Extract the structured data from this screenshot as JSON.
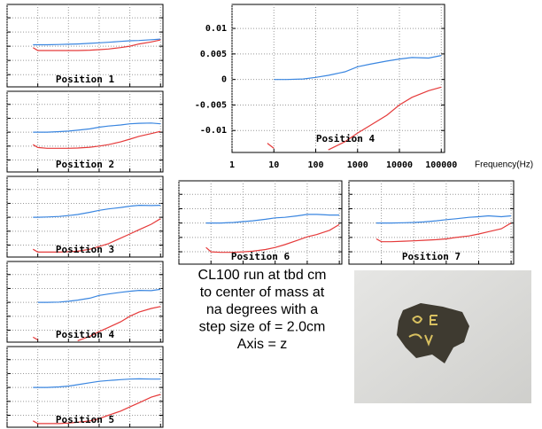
{
  "chart_data": [
    {
      "type": "line",
      "title": "Position 1",
      "log_x": true,
      "grid": true,
      "tick_labels": false,
      "x": [
        7,
        10,
        20,
        50,
        100,
        200,
        500,
        1000,
        2000,
        5000,
        10000,
        20000,
        50000,
        100000
      ],
      "xlim": [
        1,
        120000
      ],
      "xticks": [
        1,
        10,
        100,
        1000,
        10000,
        100000
      ],
      "ylim": [
        -0.0143,
        0.0147
      ],
      "yticks": [
        -0.01,
        -0.005,
        0,
        0.005,
        0.01
      ],
      "series": [
        {
          "color": "#3a86e0",
          "values": [
            0.0005,
            0.0005,
            0.0005,
            0.0006,
            0.0007,
            0.0008,
            0.001,
            0.0012,
            0.0014,
            0.0017,
            0.0019,
            0.002,
            0.0023,
            0.0025
          ]
        },
        {
          "color": "#e53a3a",
          "values": [
            -0.0005,
            -0.0015,
            -0.0015,
            -0.0015,
            -0.0015,
            -0.0015,
            -0.0014,
            -0.0012,
            -0.001,
            -0.0005,
            0,
            0.0008,
            0.0015,
            0.0022
          ]
        }
      ]
    },
    {
      "type": "line",
      "title": "Position 2",
      "log_x": true,
      "grid": true,
      "tick_labels": false,
      "x": [
        7,
        10,
        20,
        50,
        100,
        200,
        500,
        1000,
        2000,
        5000,
        10000,
        20000,
        50000,
        100000
      ],
      "xlim": [
        1,
        120000
      ],
      "xticks": [
        1,
        10,
        100,
        1000,
        10000,
        100000
      ],
      "ylim": [
        -0.0143,
        0.0147
      ],
      "yticks": [
        -0.01,
        -0.005,
        0,
        0.005,
        0.01
      ],
      "series": [
        {
          "color": "#3a86e0",
          "values": [
            0,
            0,
            0,
            0.0002,
            0.0004,
            0.0007,
            0.0012,
            0.0018,
            0.0022,
            0.0026,
            0.003,
            0.0032,
            0.0033,
            0.003
          ]
        },
        {
          "color": "#e53a3a",
          "values": [
            -0.0045,
            -0.0055,
            -0.0058,
            -0.0058,
            -0.0058,
            -0.0057,
            -0.0054,
            -0.005,
            -0.0045,
            -0.0035,
            -0.0025,
            -0.0015,
            -0.0005,
            0.0003
          ]
        }
      ]
    },
    {
      "type": "line",
      "title": "Position 3",
      "log_x": true,
      "grid": true,
      "tick_labels": false,
      "x": [
        7,
        10,
        20,
        50,
        100,
        200,
        500,
        1000,
        2000,
        5000,
        10000,
        20000,
        50000,
        100000
      ],
      "xlim": [
        1,
        120000
      ],
      "xticks": [
        1,
        10,
        100,
        1000,
        10000,
        100000
      ],
      "ylim": [
        -0.0143,
        0.0147
      ],
      "yticks": [
        -0.01,
        -0.005,
        0,
        0.005,
        0.01
      ],
      "series": [
        {
          "color": "#3a86e0",
          "values": [
            0,
            0,
            0.0001,
            0.0003,
            0.0006,
            0.001,
            0.0018,
            0.0025,
            0.003,
            0.0035,
            0.004,
            0.0043,
            0.0042,
            0.0043
          ]
        },
        {
          "color": "#e53a3a",
          "values": [
            -0.0115,
            -0.0125,
            -0.0125,
            -0.0125,
            -0.0124,
            -0.0122,
            -0.0115,
            -0.0105,
            -0.0095,
            -0.0075,
            -0.006,
            -0.0045,
            -0.0025,
            -0.0005
          ]
        }
      ]
    },
    {
      "type": "line",
      "title": "Position 4",
      "log_x": true,
      "grid": true,
      "tick_labels": false,
      "x": [
        7,
        10,
        20,
        50,
        100,
        200,
        500,
        1000,
        2000,
        5000,
        10000,
        20000,
        50000,
        100000
      ],
      "xlim": [
        1,
        120000
      ],
      "xticks": [
        1,
        10,
        100,
        1000,
        10000,
        100000
      ],
      "ylim": [
        -0.0143,
        0.0147
      ],
      "yticks": [
        -0.01,
        -0.005,
        0,
        0.005,
        0.01
      ],
      "series": [
        {
          "color": "#3a86e0",
          "values": [
            null,
            0,
            0,
            0.0001,
            0.0004,
            0.0008,
            0.0015,
            0.0025,
            0.003,
            0.0036,
            0.004,
            0.0043,
            0.0042,
            0.0047
          ]
        },
        {
          "color": "#e53a3a",
          "values": [
            -0.0125,
            -0.0135,
            null,
            null,
            null,
            -0.0138,
            -0.0122,
            -0.0105,
            -0.009,
            -0.007,
            -0.005,
            -0.0035,
            -0.0022,
            -0.0015
          ]
        }
      ]
    },
    {
      "type": "line",
      "title": "Position 5",
      "log_x": true,
      "grid": true,
      "tick_labels": false,
      "x": [
        7,
        10,
        20,
        50,
        100,
        200,
        500,
        1000,
        2000,
        5000,
        10000,
        20000,
        50000,
        100000
      ],
      "xlim": [
        1,
        120000
      ],
      "xticks": [
        1,
        10,
        100,
        1000,
        10000,
        100000
      ],
      "ylim": [
        -0.0143,
        0.0147
      ],
      "yticks": [
        -0.01,
        -0.005,
        0,
        0.005,
        0.01
      ],
      "series": [
        {
          "color": "#3a86e0",
          "values": [
            0,
            0,
            0,
            0.0002,
            0.0005,
            0.001,
            0.0017,
            0.0022,
            0.0025,
            0.0028,
            0.003,
            0.0031,
            0.003,
            0.003
          ]
        },
        {
          "color": "#e53a3a",
          "values": [
            -0.012,
            -0.013,
            -0.013,
            -0.013,
            -0.0128,
            -0.0125,
            -0.012,
            -0.0112,
            -0.01,
            -0.0085,
            -0.007,
            -0.0055,
            -0.0035,
            -0.0025
          ]
        }
      ]
    },
    {
      "type": "line",
      "title": "Position 4",
      "log_x": true,
      "grid": true,
      "tick_labels": true,
      "x_label": "Frequency(Hz)",
      "x": [
        7,
        10,
        20,
        50,
        100,
        200,
        500,
        1000,
        2000,
        5000,
        10000,
        20000,
        50000,
        100000
      ],
      "xlim": [
        1,
        120000
      ],
      "xticks": [
        1,
        10,
        100,
        1000,
        10000,
        100000
      ],
      "ylim": [
        -0.0143,
        0.0147
      ],
      "yticks": [
        -0.01,
        -0.005,
        0,
        0.005,
        0.01
      ],
      "series": [
        {
          "color": "#3a86e0",
          "values": [
            null,
            0,
            0,
            0.0001,
            0.0004,
            0.0008,
            0.0015,
            0.0025,
            0.003,
            0.0036,
            0.004,
            0.0043,
            0.0042,
            0.0047
          ]
        },
        {
          "color": "#e53a3a",
          "values": [
            -0.0125,
            -0.0135,
            null,
            null,
            null,
            -0.0138,
            -0.0122,
            -0.0105,
            -0.009,
            -0.007,
            -0.005,
            -0.0035,
            -0.0022,
            -0.0015
          ]
        }
      ]
    },
    {
      "type": "line",
      "title": "Position 6",
      "log_x": true,
      "grid": true,
      "tick_labels": false,
      "x": [
        7,
        10,
        20,
        50,
        100,
        200,
        500,
        1000,
        2000,
        5000,
        10000,
        20000,
        50000,
        100000
      ],
      "xlim": [
        1,
        120000
      ],
      "xticks": [
        1,
        10,
        100,
        1000,
        10000,
        100000
      ],
      "ylim": [
        -0.0143,
        0.0147
      ],
      "yticks": [
        -0.01,
        -0.005,
        0,
        0.005,
        0.01
      ],
      "series": [
        {
          "color": "#3a86e0",
          "values": [
            0,
            0,
            0,
            0.0002,
            0.0005,
            0.0008,
            0.0013,
            0.0018,
            0.002,
            0.0025,
            0.003,
            0.003,
            0.0028,
            0.0028
          ]
        },
        {
          "color": "#e53a3a",
          "values": [
            -0.0085,
            -0.01,
            -0.0102,
            -0.0102,
            -0.01,
            -0.0098,
            -0.0092,
            -0.0085,
            -0.0075,
            -0.006,
            -0.0048,
            -0.004,
            -0.0025,
            -0.0005
          ]
        }
      ]
    },
    {
      "type": "line",
      "title": "Position 7",
      "log_x": true,
      "grid": true,
      "tick_labels": false,
      "x": [
        7,
        10,
        20,
        50,
        100,
        200,
        500,
        1000,
        2000,
        5000,
        10000,
        20000,
        50000,
        100000
      ],
      "xlim": [
        1,
        120000
      ],
      "xticks": [
        1,
        10,
        100,
        1000,
        10000,
        100000
      ],
      "ylim": [
        -0.0143,
        0.0147
      ],
      "yticks": [
        -0.01,
        -0.005,
        0,
        0.005,
        0.01
      ],
      "series": [
        {
          "color": "#3a86e0",
          "values": [
            0,
            0,
            0,
            0.0001,
            0.0002,
            0.0004,
            0.0008,
            0.0012,
            0.0015,
            0.002,
            0.0022,
            0.0025,
            0.0022,
            0.0025
          ]
        },
        {
          "color": "#e53a3a",
          "values": [
            -0.0055,
            -0.0065,
            -0.0065,
            -0.0063,
            -0.0062,
            -0.006,
            -0.0058,
            -0.0055,
            -0.005,
            -0.0045,
            -0.0038,
            -0.003,
            -0.002,
            0
          ]
        }
      ]
    }
  ],
  "caption": [
    "CL100 run at tbd cm",
    "to center of mass at",
    "na degrees with a",
    "step size of = 2.0cm",
    "Axis = z"
  ]
}
